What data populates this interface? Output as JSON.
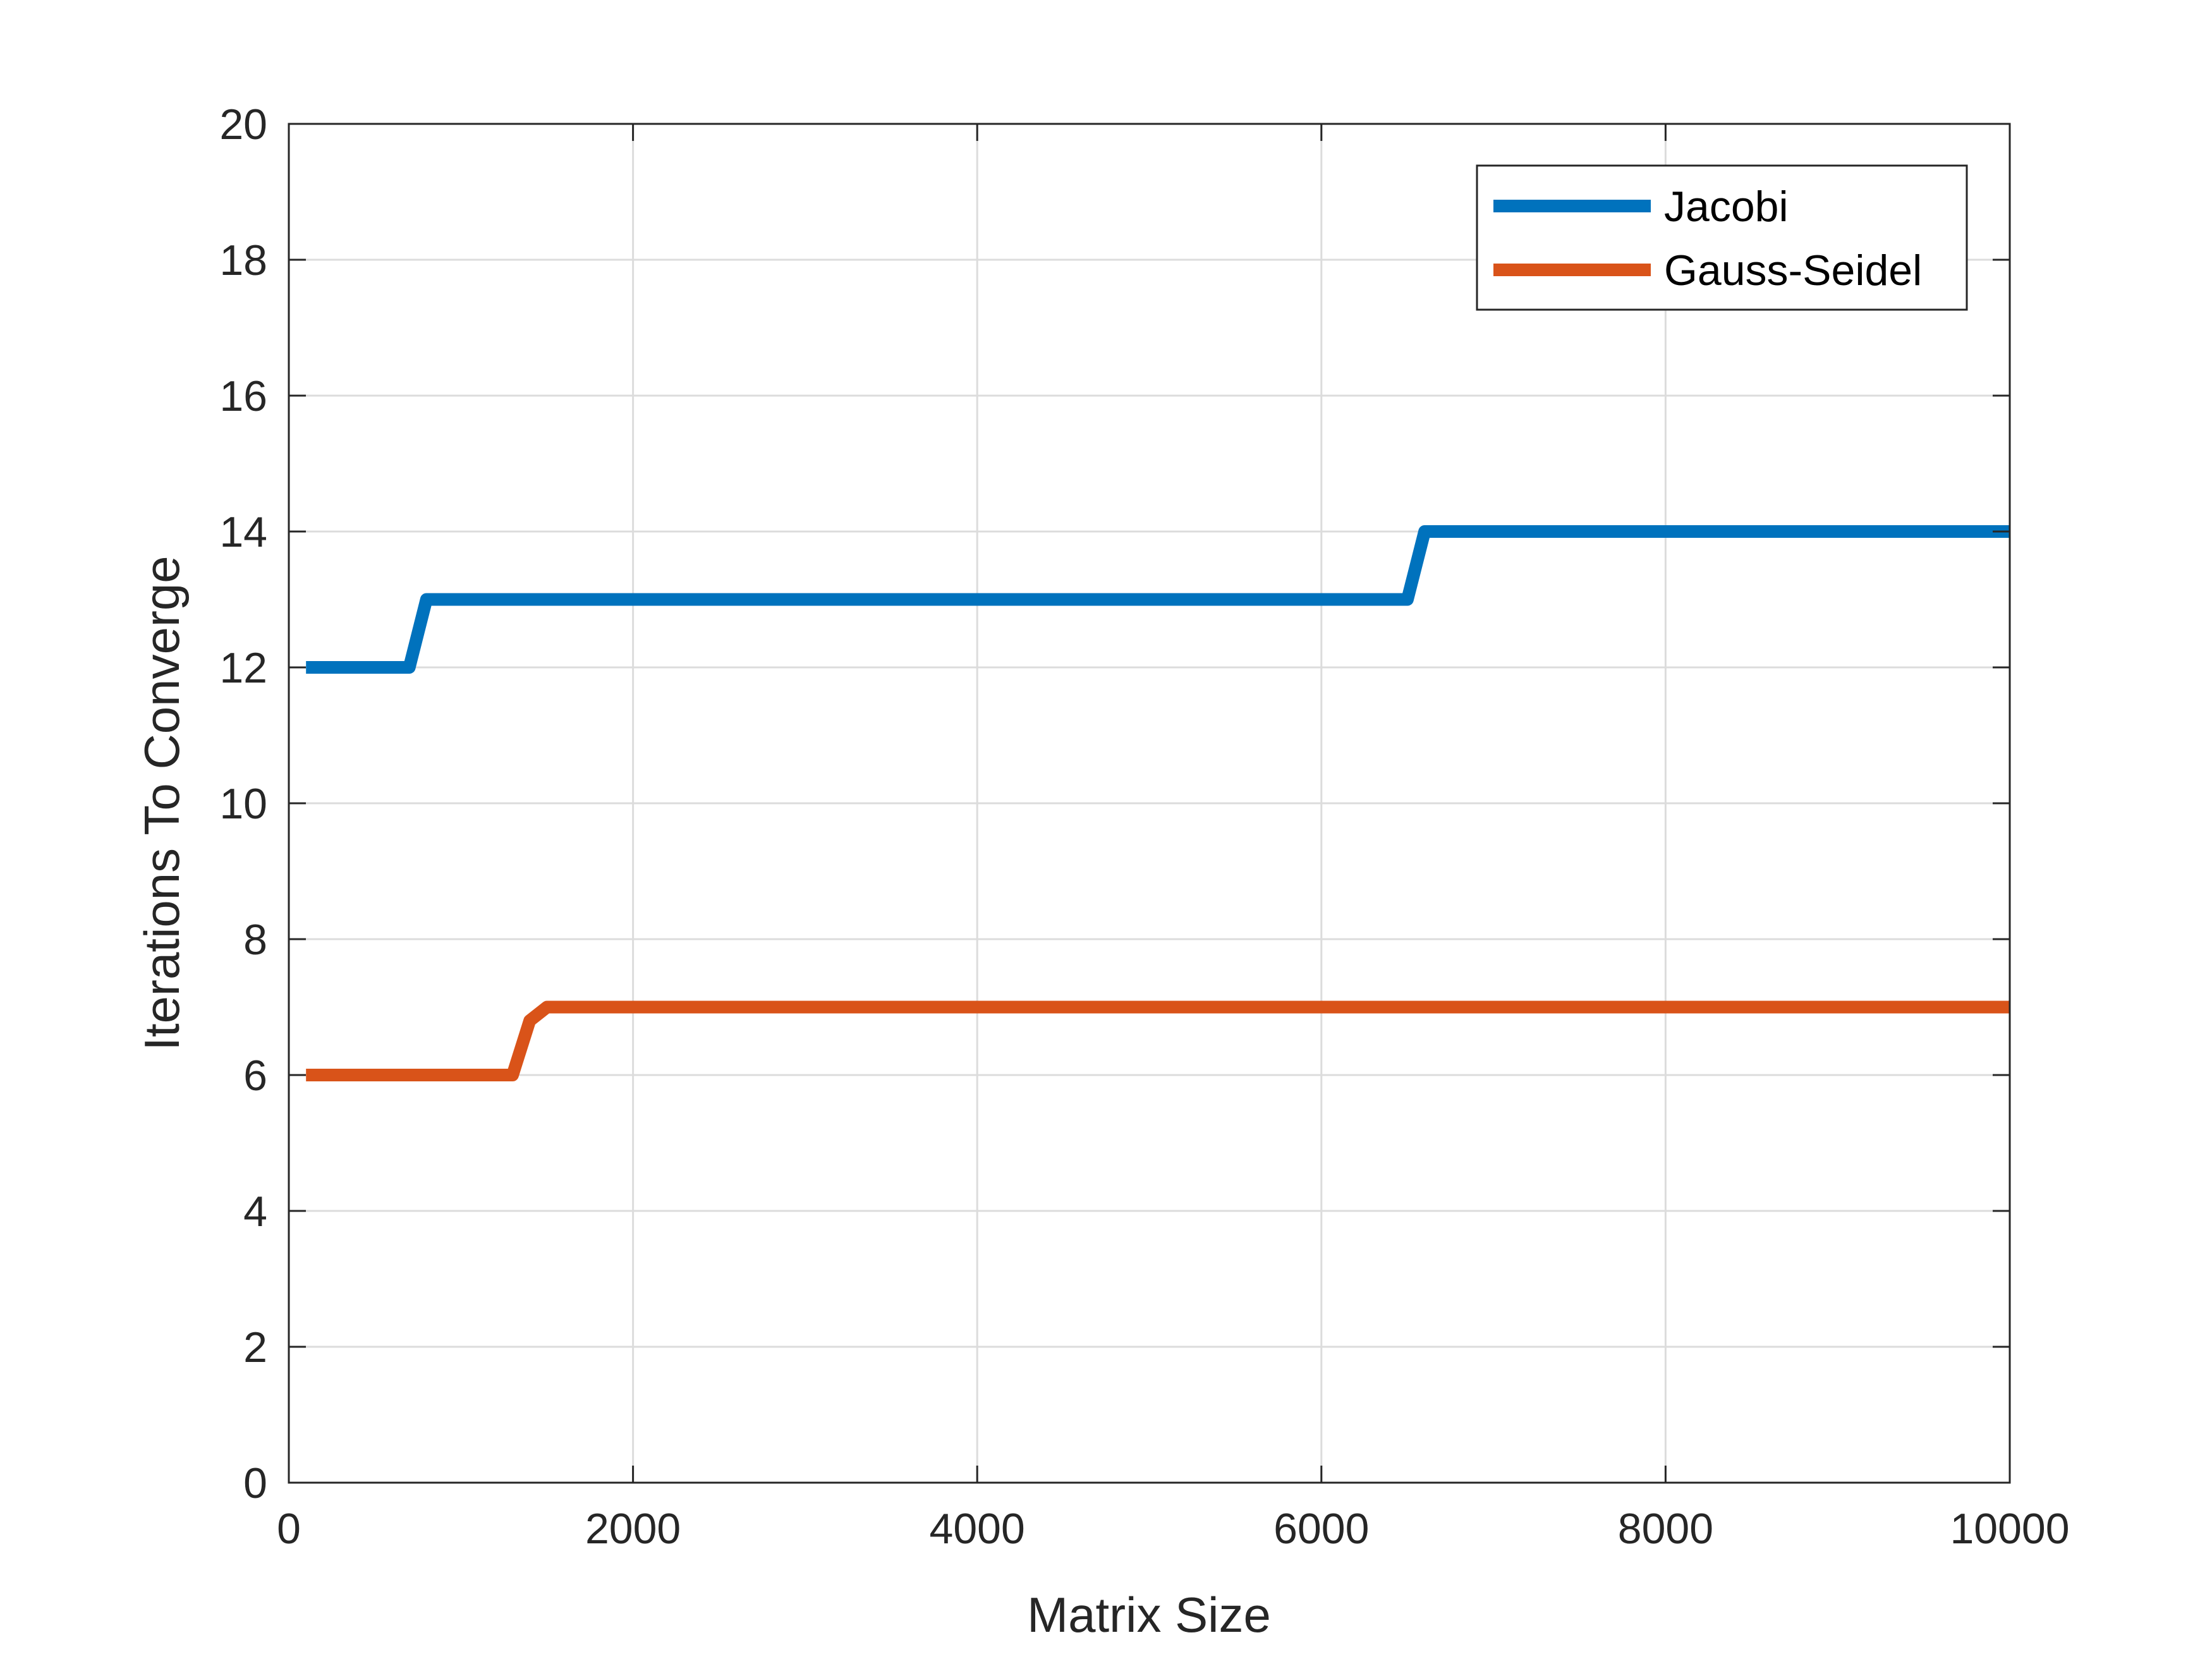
{
  "chart_data": {
    "type": "line",
    "title": "",
    "xlabel": "Matrix Size",
    "ylabel": "Iterations To Converge",
    "xlim": [
      0,
      10000
    ],
    "ylim": [
      0,
      20
    ],
    "xticks": [
      0,
      2000,
      4000,
      6000,
      8000,
      10000
    ],
    "yticks": [
      0,
      2,
      4,
      6,
      8,
      10,
      12,
      14,
      16,
      18,
      20
    ],
    "xtick_labels": [
      "0",
      "2000",
      "4000",
      "6000",
      "8000",
      "10000"
    ],
    "ytick_labels": [
      "0",
      "2",
      "4",
      "6",
      "8",
      "10",
      "12",
      "14",
      "16",
      "18",
      "20"
    ],
    "grid": true,
    "legend": "top-right",
    "series": [
      {
        "name": "Jacobi",
        "color": "#0072BD",
        "x": [
          100,
          700,
          800,
          6500,
          6600,
          10000
        ],
        "y": [
          12,
          12,
          13,
          13,
          14,
          14
        ]
      },
      {
        "name": "Gauss-Seidel",
        "color": "#D95319",
        "x": [
          100,
          1300,
          1400,
          1500,
          10000
        ],
        "y": [
          6,
          6,
          6.8,
          7,
          7
        ]
      }
    ]
  }
}
